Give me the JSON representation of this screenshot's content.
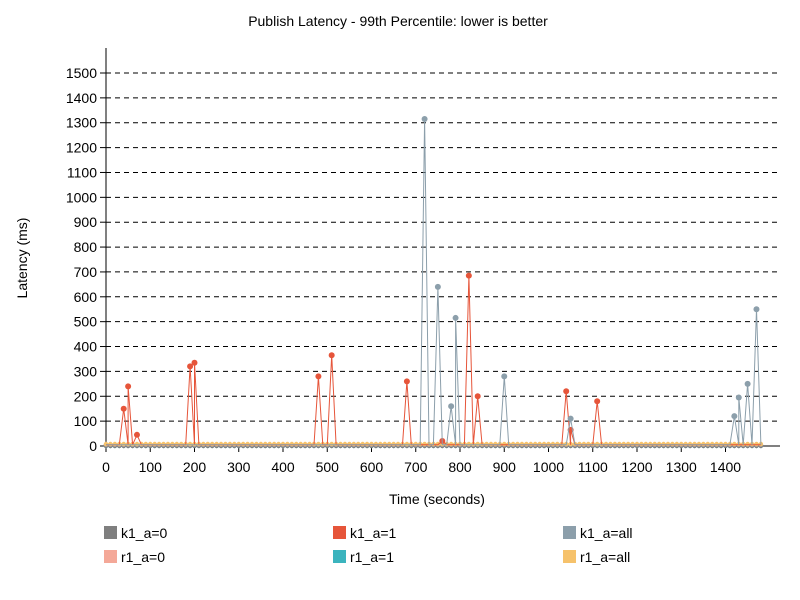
{
  "chart_data": {
    "type": "line",
    "title": "Publish Latency - 99th Percentile: lower is better",
    "xlabel": "Time (seconds)",
    "ylabel": "Latency (ms)",
    "xlim": [
      0,
      1500
    ],
    "ylim": [
      0,
      1500
    ],
    "x_ticks": [
      0,
      100,
      200,
      300,
      400,
      500,
      600,
      700,
      800,
      900,
      1000,
      1100,
      1200,
      1300,
      1400
    ],
    "y_ticks": [
      0,
      100,
      200,
      300,
      400,
      500,
      600,
      700,
      800,
      900,
      1000,
      1100,
      1200,
      1300,
      1400,
      1500
    ],
    "grid": "horizontal dashed",
    "legend_position": "bottom",
    "series": [
      {
        "name": "k1_a=0",
        "color": "#7f7f7f",
        "baseline": 0,
        "points": []
      },
      {
        "name": "k1_a=1",
        "color": "#e6553a",
        "baseline": 5,
        "points": [
          [
            40,
            150
          ],
          [
            50,
            240
          ],
          [
            70,
            45
          ],
          [
            190,
            320
          ],
          [
            200,
            335
          ],
          [
            480,
            280
          ],
          [
            510,
            365
          ],
          [
            680,
            260
          ],
          [
            760,
            20
          ],
          [
            820,
            685
          ],
          [
            840,
            200
          ],
          [
            1040,
            220
          ],
          [
            1050,
            65
          ],
          [
            1110,
            180
          ]
        ]
      },
      {
        "name": "k1_a=all",
        "color": "#8c9fab",
        "baseline": 5,
        "points": [
          [
            720,
            1315
          ],
          [
            750,
            640
          ],
          [
            780,
            160
          ],
          [
            790,
            515
          ],
          [
            900,
            280
          ],
          [
            1050,
            110
          ],
          [
            1420,
            120
          ],
          [
            1430,
            195
          ],
          [
            1450,
            250
          ],
          [
            1470,
            550
          ]
        ]
      },
      {
        "name": "r1_a=0",
        "color": "#f4a898",
        "baseline": 5,
        "points": []
      },
      {
        "name": "r1_a=1",
        "color": "#3bb4be",
        "baseline": 0,
        "points": []
      },
      {
        "name": "r1_a=all",
        "color": "#f6c26b",
        "baseline": 8,
        "points": []
      }
    ]
  }
}
